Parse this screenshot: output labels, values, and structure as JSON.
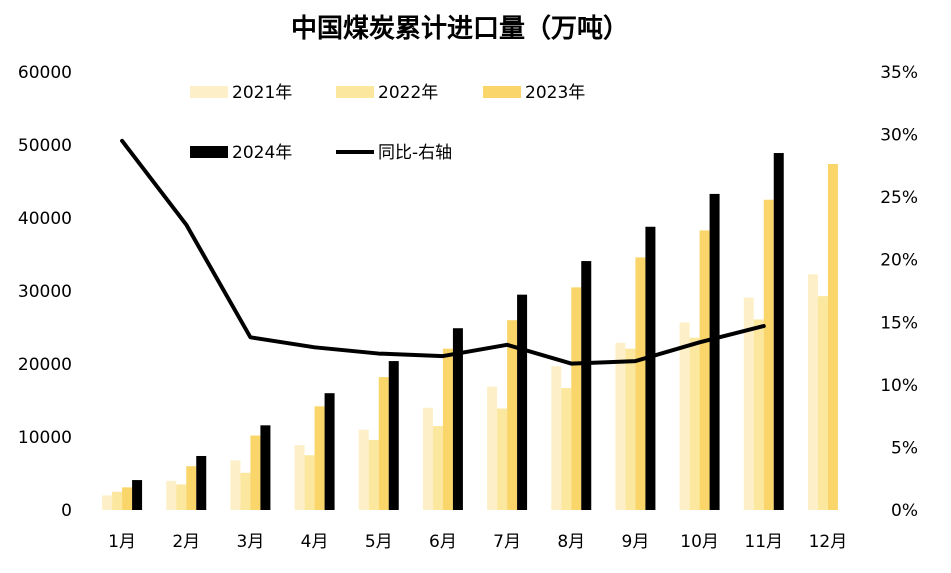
{
  "chart_data": {
    "type": "bar",
    "title": "中国煤炭累计进口量（万吨）",
    "categories": [
      "1月",
      "2月",
      "3月",
      "4月",
      "5月",
      "6月",
      "7月",
      "8月",
      "9月",
      "10月",
      "11月",
      "12月"
    ],
    "series": [
      {
        "name": "2021年",
        "kind": "bar",
        "axis": "left",
        "color": "#FDF0C8",
        "values": [
          2000,
          4000,
          6800,
          8900,
          11000,
          14000,
          16900,
          19700,
          22900,
          25700,
          29100,
          32300
        ]
      },
      {
        "name": "2022年",
        "kind": "bar",
        "axis": "left",
        "color": "#FCE79E",
        "values": [
          2500,
          3500,
          5100,
          7500,
          9600,
          11500,
          13900,
          16700,
          22100,
          23600,
          26100,
          29300
        ]
      },
      {
        "name": "2023年",
        "kind": "bar",
        "axis": "left",
        "color": "#F9D56A",
        "values": [
          3100,
          6000,
          10200,
          14200,
          18200,
          22100,
          26000,
          30500,
          34600,
          38300,
          42500,
          47400
        ]
      },
      {
        "name": "2024年",
        "kind": "bar",
        "axis": "left",
        "color": "#000000",
        "values": [
          4100,
          7400,
          11600,
          16000,
          20400,
          24900,
          29500,
          34100,
          38800,
          43300,
          48900,
          null
        ]
      },
      {
        "name": "同比-右轴",
        "kind": "line",
        "axis": "right",
        "color": "#000000",
        "values": [
          29.5,
          22.8,
          13.8,
          13.0,
          12.5,
          12.3,
          13.2,
          11.7,
          11.9,
          13.4,
          14.7,
          null
        ]
      }
    ],
    "y_left": {
      "min": 0,
      "max": 60000,
      "ticks": [
        "0",
        "10000",
        "20000",
        "30000",
        "40000",
        "50000",
        "60000"
      ]
    },
    "y_right": {
      "min": 0,
      "max": 35,
      "ticks": [
        "0%",
        "5%",
        "10%",
        "15%",
        "20%",
        "25%",
        "30%",
        "35%"
      ]
    },
    "grid": false,
    "legend_position": "top"
  }
}
